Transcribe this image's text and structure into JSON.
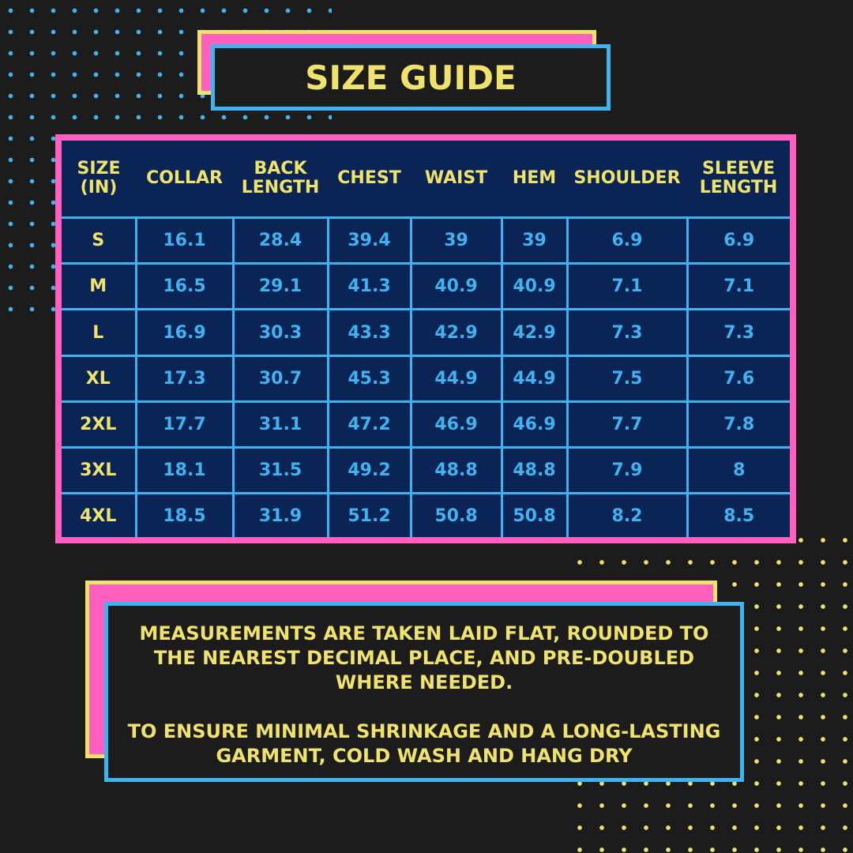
{
  "header": {
    "title": "SIZE GUIDE"
  },
  "table": {
    "columns": [
      "SIZE (IN)",
      "COLLAR",
      "BACK LENGTH",
      "CHEST",
      "WAIST",
      "HEM",
      "SHOULDER",
      "SLEEVE LENGTH"
    ],
    "rows": [
      [
        "S",
        "16.1",
        "28.4",
        "39.4",
        "39",
        "39",
        "6.9",
        "6.9"
      ],
      [
        "M",
        "16.5",
        "29.1",
        "41.3",
        "40.9",
        "40.9",
        "7.1",
        "7.1"
      ],
      [
        "L",
        "16.9",
        "30.3",
        "43.3",
        "42.9",
        "42.9",
        "7.3",
        "7.3"
      ],
      [
        "XL",
        "17.3",
        "30.7",
        "45.3",
        "44.9",
        "44.9",
        "7.5",
        "7.6"
      ],
      [
        "2XL",
        "17.7",
        "31.1",
        "47.2",
        "46.9",
        "46.9",
        "7.7",
        "7.8"
      ],
      [
        "3XL",
        "18.1",
        "31.5",
        "49.2",
        "48.8",
        "48.8",
        "7.9",
        "8"
      ],
      [
        "4XL",
        "18.5",
        "31.9",
        "51.2",
        "50.8",
        "50.8",
        "8.2",
        "8.5"
      ]
    ]
  },
  "note": {
    "paragraphs": [
      "MEASUREMENTS ARE TAKEN LAID FLAT, ROUNDED TO THE NEAREST DECIMAL PLACE, AND PRE-DOUBLED WHERE NEEDED.",
      "TO ENSURE MINIMAL SHRINKAGE AND A LONG-LASTING GARMENT, COLD WASH AND HANG DRY"
    ]
  }
}
